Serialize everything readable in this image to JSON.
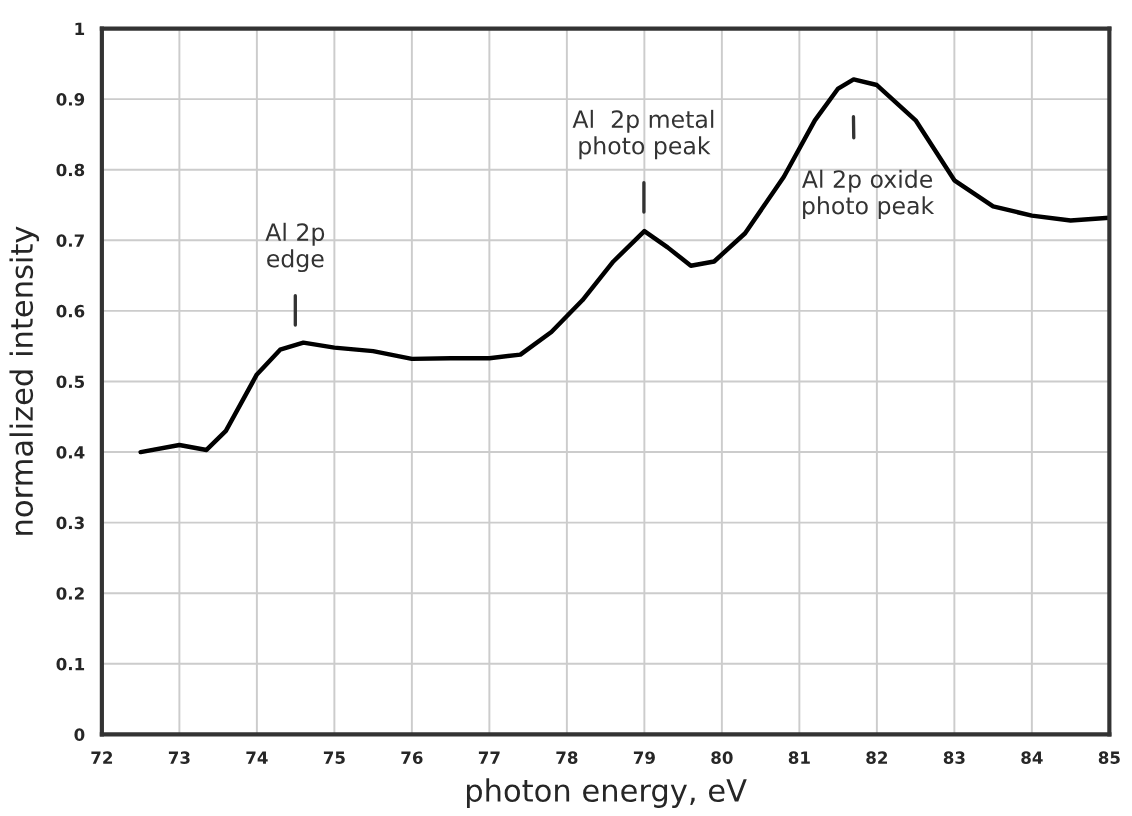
{
  "chart_data": {
    "type": "line",
    "xlabel": "photon energy, eV",
    "ylabel": "normalized intensity",
    "series": [
      {
        "color": "#000000",
        "x": [
          72.5,
          73,
          73.35,
          73.6,
          74,
          74.3,
          74.6,
          75,
          75.5,
          76,
          76.5,
          77,
          77.4,
          77.8,
          78.2,
          78.6,
          79,
          79.3,
          79.6,
          79.9,
          80.3,
          80.8,
          81.2,
          81.5,
          81.7,
          82,
          82.5,
          83,
          83.5,
          84,
          84.5,
          85
        ],
        "values": [
          0.4,
          0.41,
          0.403,
          0.43,
          0.51,
          0.545,
          0.555,
          0.548,
          0.543,
          0.532,
          0.533,
          0.533,
          0.538,
          0.57,
          0.615,
          0.67,
          0.713,
          0.69,
          0.664,
          0.67,
          0.71,
          0.79,
          0.87,
          0.915,
          0.928,
          0.92,
          0.87,
          0.785,
          0.748,
          0.735,
          0.728,
          0.732
        ]
      }
    ],
    "annotations": [
      "Al 2p\nedge",
      "Al  2p metal\nphoto peak",
      "Al 2p oxide\nphoto peak"
    ],
    "xlim": [
      72,
      85
    ],
    "xticks": [
      72,
      73,
      74,
      75,
      76,
      77,
      78,
      79,
      80,
      81,
      82,
      83,
      84,
      85
    ],
    "ylim": [
      0,
      1
    ],
    "yticks": [
      0,
      0.1,
      0.2,
      0.3,
      0.4,
      0.5,
      0.6,
      0.7,
      0.8,
      0.9,
      1
    ],
    "grid": true,
    "marker": "none",
    "line_style": "solid"
  }
}
